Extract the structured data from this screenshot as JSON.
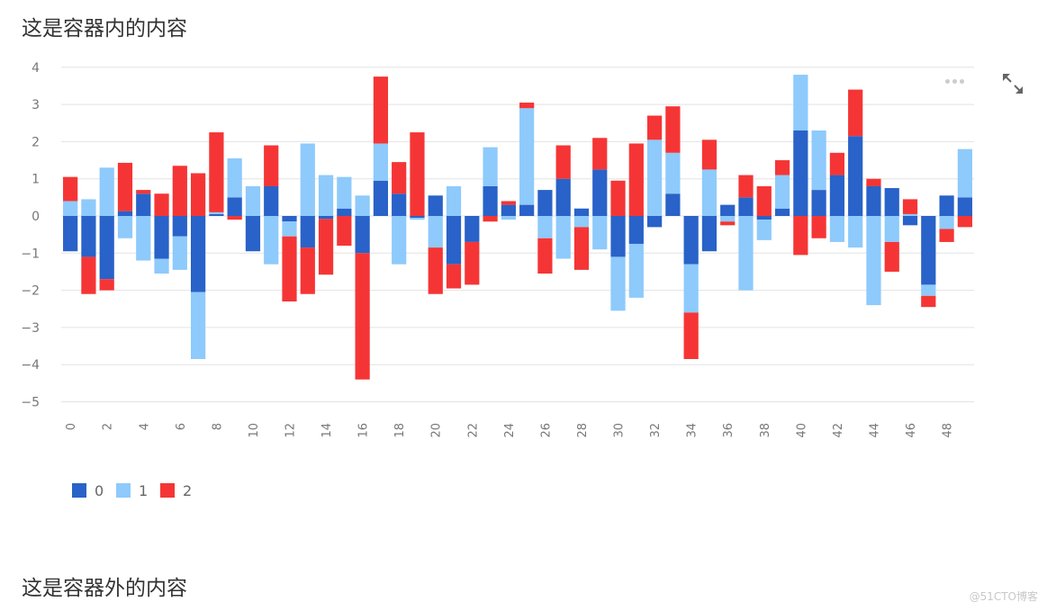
{
  "heading_top": "这是容器内的内容",
  "heading_bottom": "这是容器外的内容",
  "watermark": "@51CTO博客",
  "icons": {
    "more": "more-dots-icon",
    "expand": "expand-icon"
  },
  "chart_data": {
    "type": "bar",
    "stacked": true,
    "title": "",
    "xlabel": "",
    "ylabel": "",
    "ylim": [
      -5.5,
      4.2
    ],
    "yticks": [
      4,
      3,
      2,
      1,
      0,
      -1,
      -2,
      -3,
      -4,
      -5
    ],
    "ytick_labels": [
      "4",
      "3",
      "2",
      "1",
      "0",
      "−1",
      "−2",
      "−3",
      "−4",
      "−5"
    ],
    "x_tick_every": 2,
    "grid": true,
    "legend_position": "bottom-left",
    "categories": [
      "0",
      "1",
      "2",
      "3",
      "4",
      "5",
      "6",
      "7",
      "8",
      "9",
      "10",
      "11",
      "12",
      "13",
      "14",
      "15",
      "16",
      "17",
      "18",
      "19",
      "20",
      "21",
      "22",
      "23",
      "24",
      "25",
      "26",
      "27",
      "28",
      "29",
      "30",
      "31",
      "32",
      "33",
      "34",
      "35",
      "36",
      "37",
      "38",
      "39",
      "40",
      "41",
      "42",
      "43",
      "44",
      "45",
      "46",
      "47",
      "48",
      "49"
    ],
    "series": [
      {
        "name": "0",
        "color": "#2962c8",
        "values": [
          -0.95,
          -1.1,
          -1.7,
          0.13,
          0.6,
          -1.15,
          -0.55,
          -2.05,
          0.05,
          0.5,
          -0.95,
          0.8,
          -0.15,
          -0.85,
          -0.08,
          0.2,
          -1.0,
          0.95,
          0.6,
          -0.05,
          0.55,
          -1.3,
          -0.7,
          0.8,
          0.3,
          0.3,
          0.7,
          1.0,
          0.2,
          1.25,
          -1.1,
          -0.75,
          -0.3,
          0.6,
          -1.3,
          -0.95,
          0.3,
          0.5,
          -0.1,
          0.2,
          2.3,
          0.7,
          1.1,
          2.15,
          0.8,
          0.75,
          -0.25,
          -1.85,
          0.55,
          0.5
        ]
      },
      {
        "name": "1",
        "color": "#8ecafb",
        "values": [
          0.4,
          0.45,
          1.3,
          -0.6,
          -1.2,
          -0.4,
          -0.9,
          -1.8,
          0.05,
          1.05,
          0.8,
          -1.3,
          -0.4,
          1.95,
          1.1,
          0.85,
          0.55,
          1.0,
          -1.3,
          -0.05,
          -0.85,
          0.8,
          0.0,
          1.05,
          -0.1,
          2.6,
          -0.6,
          -1.15,
          -0.3,
          -0.9,
          -1.45,
          -1.45,
          2.05,
          1.1,
          -1.3,
          1.25,
          -0.15,
          -2.0,
          -0.55,
          0.9,
          1.5,
          1.6,
          -0.7,
          -0.85,
          -2.4,
          -0.7,
          0.05,
          -0.3,
          -0.35,
          1.3
        ]
      },
      {
        "name": "2",
        "color": "#f53535",
        "values": [
          0.65,
          -1.0,
          -0.3,
          1.3,
          0.1,
          0.6,
          1.35,
          1.15,
          2.15,
          -0.1,
          0.0,
          1.1,
          -1.75,
          -1.25,
          -1.5,
          -0.8,
          -3.4,
          1.8,
          0.85,
          2.25,
          -1.25,
          -0.65,
          -1.15,
          -0.15,
          0.1,
          0.15,
          -0.95,
          0.9,
          -1.15,
          0.85,
          0.95,
          1.95,
          0.65,
          1.25,
          -1.25,
          0.8,
          -0.1,
          0.6,
          0.8,
          0.4,
          -1.05,
          -0.6,
          0.6,
          1.25,
          0.2,
          -0.8,
          0.4,
          -0.3,
          -0.35,
          -0.3
        ]
      }
    ]
  }
}
